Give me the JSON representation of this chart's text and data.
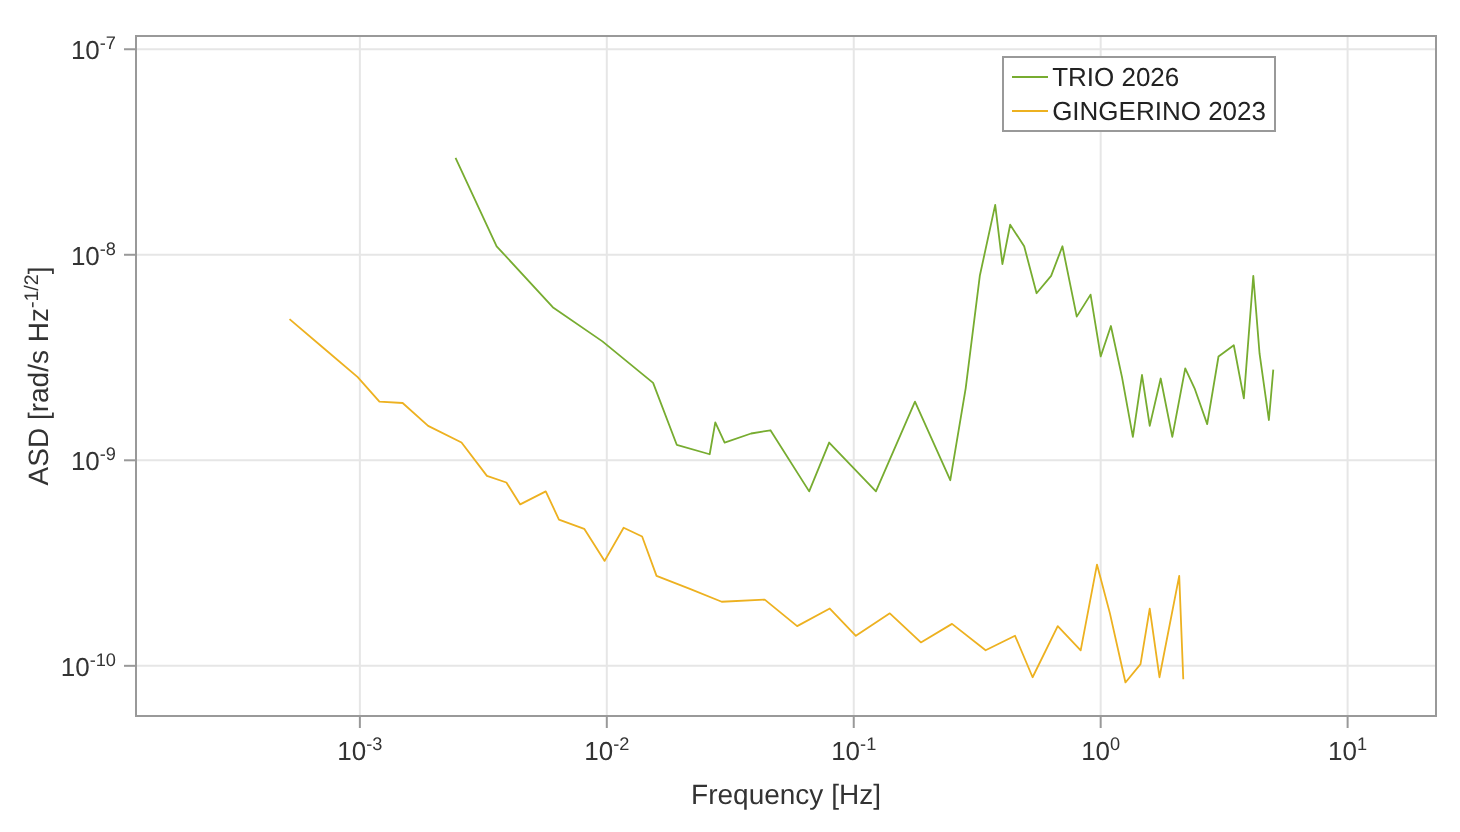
{
  "chart_data": {
    "type": "line",
    "xlabel": "Frequency [Hz]",
    "ylabel": "ASD [rad/s Hz$^{-1/2}$]",
    "log": "xy",
    "grid": true,
    "legend": "top right",
    "xlim": [
      0.000124,
      22.8
    ],
    "ylim": [
      5.7e-11,
      1.16e-07
    ],
    "xticks": [
      {
        "value": 0.001,
        "label": "10$^{-3}$"
      },
      {
        "value": 0.01,
        "label": "10$^{-2}$"
      },
      {
        "value": 0.1,
        "label": "10$^{-1}$"
      },
      {
        "value": 1,
        "label": "10$^{0}$"
      },
      {
        "value": 10,
        "label": "10$^{1}$"
      }
    ],
    "yticks": [
      {
        "value": 1e-10,
        "label": "10$^{-10}$"
      },
      {
        "value": 1e-09,
        "label": "10$^{-9}$"
      },
      {
        "value": 1e-08,
        "label": "10$^{-8}$"
      },
      {
        "value": 1e-07,
        "label": "10$^{-7}$"
      }
    ],
    "series": [
      {
        "name": "TRIO 2026",
        "color": "#77ac30",
        "x": [
          0.00244,
          0.00358,
          0.00608,
          0.0096,
          0.0154,
          0.0192,
          0.0261,
          0.0275,
          0.03,
          0.0384,
          0.046,
          0.066,
          0.0795,
          0.123,
          0.177,
          0.246,
          0.284,
          0.324,
          0.374,
          0.4,
          0.43,
          0.49,
          0.55,
          0.63,
          0.7,
          0.8,
          0.91,
          1.0,
          1.1,
          1.22,
          1.35,
          1.47,
          1.58,
          1.75,
          1.95,
          2.2,
          2.4,
          2.7,
          3.0,
          3.46,
          3.8,
          4.15,
          4.4,
          4.8,
          5.0
        ],
        "values": [
          2.96e-08,
          1.1e-08,
          5.52e-09,
          3.79e-09,
          2.38e-09,
          1.19e-09,
          1.07e-09,
          1.53e-09,
          1.22e-09,
          1.35e-09,
          1.4e-09,
          7.06e-10,
          1.22e-09,
          7.06e-10,
          1.93e-09,
          8e-10,
          2.24e-09,
          7.9e-09,
          1.75e-08,
          9e-09,
          1.4e-08,
          1.1e-08,
          6.5e-09,
          7.9e-09,
          1.1e-08,
          5e-09,
          6.4e-09,
          3.2e-09,
          4.5e-09,
          2.54e-09,
          1.3e-09,
          2.6e-09,
          1.47e-09,
          2.5e-09,
          1.3e-09,
          2.8e-09,
          2.24e-09,
          1.5e-09,
          3.2e-09,
          3.63e-09,
          2e-09,
          7.9e-09,
          3.3e-09,
          1.57e-09,
          2.76e-09
        ]
      },
      {
        "name": "GINGERINO 2023",
        "color": "#edb120",
        "x": [
          0.000519,
          0.00072,
          0.00098,
          0.0012,
          0.00149,
          0.00189,
          0.00258,
          0.00327,
          0.00392,
          0.00446,
          0.00566,
          0.0064,
          0.0081,
          0.0098,
          0.0117,
          0.0139,
          0.0159,
          0.0217,
          0.0292,
          0.0436,
          0.059,
          0.08,
          0.102,
          0.14,
          0.187,
          0.25,
          0.342,
          0.45,
          0.53,
          0.67,
          0.83,
          0.966,
          1.09,
          1.26,
          1.45,
          1.58,
          1.73,
          2.08,
          2.16
        ],
        "values": [
          4.86e-09,
          3.48e-09,
          2.54e-09,
          1.93e-09,
          1.9e-09,
          1.47e-09,
          1.22e-09,
          8.4e-10,
          7.8e-10,
          6.1e-10,
          7.06e-10,
          5.15e-10,
          4.64e-10,
          3.24e-10,
          4.7e-10,
          4.26e-10,
          2.74e-10,
          2.37e-10,
          2.05e-10,
          2.1e-10,
          1.56e-10,
          1.9e-10,
          1.4e-10,
          1.8e-10,
          1.3e-10,
          1.6e-10,
          1.19e-10,
          1.4e-10,
          8.8e-11,
          1.56e-10,
          1.19e-10,
          3.11e-10,
          1.8e-10,
          8.3e-11,
          1.02e-10,
          1.9e-10,
          8.8e-11,
          2.74e-10,
          8.6e-11
        ]
      }
    ]
  }
}
